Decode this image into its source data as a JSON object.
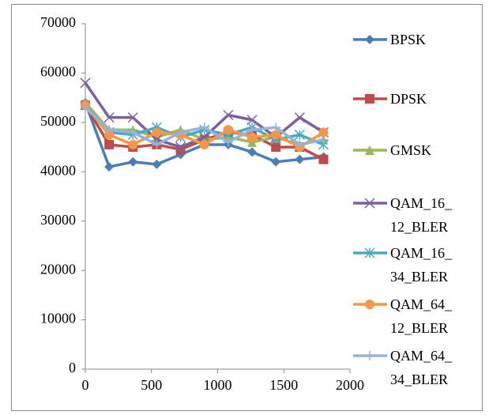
{
  "chart_data": {
    "type": "line",
    "x": [
      0,
      180,
      360,
      540,
      720,
      900,
      1080,
      1260,
      1440,
      1620,
      1800
    ],
    "series": [
      {
        "name": "BPSK",
        "color": "#4a7ebb",
        "marker": "diamond",
        "values": [
          54000,
          41000,
          42000,
          41500,
          43500,
          45500,
          45500,
          44000,
          42000,
          42500,
          43000
        ]
      },
      {
        "name": "DPSK",
        "color": "#be4b48",
        "marker": "square",
        "values": [
          53500,
          45500,
          45000,
          45500,
          44500,
          46500,
          48000,
          47500,
          45000,
          45000,
          42500
        ]
      },
      {
        "name": "GMSK",
        "color": "#98b954",
        "marker": "triangle",
        "values": [
          54000,
          48500,
          48500,
          47000,
          48500,
          46500,
          47000,
          46000,
          47000,
          45500,
          46500
        ]
      },
      {
        "name": "QAM_16_12_BLER",
        "color": "#7d60a0",
        "marker": "x",
        "values": [
          58000,
          51000,
          51000,
          46500,
          45000,
          47000,
          51500,
          50500,
          47000,
          51000,
          48000
        ]
      },
      {
        "name": "QAM_16_34_BLER",
        "color": "#46aac5",
        "marker": "star",
        "values": [
          53500,
          48000,
          47500,
          49000,
          47000,
          48500,
          47500,
          49000,
          46500,
          47500,
          45500
        ]
      },
      {
        "name": "QAM_64_12_BLER",
        "color": "#f79646",
        "marker": "circle",
        "values": [
          53500,
          47500,
          45500,
          48000,
          47500,
          45500,
          48500,
          47000,
          47500,
          45000,
          48000
        ]
      },
      {
        "name": "QAM_64_34_BLER",
        "color": "#95b3d7",
        "marker": "plus",
        "values": [
          53000,
          48500,
          48000,
          45500,
          48000,
          49000,
          46000,
          48500,
          49000,
          45500,
          46500
        ]
      }
    ],
    "xlim": [
      0,
      2000
    ],
    "xticks": [
      0,
      500,
      1000,
      1500,
      2000
    ],
    "ylim": [
      0,
      70000
    ],
    "yticks": [
      0,
      10000,
      20000,
      30000,
      40000,
      50000,
      60000,
      70000
    ],
    "grid": false,
    "legend": "right"
  }
}
